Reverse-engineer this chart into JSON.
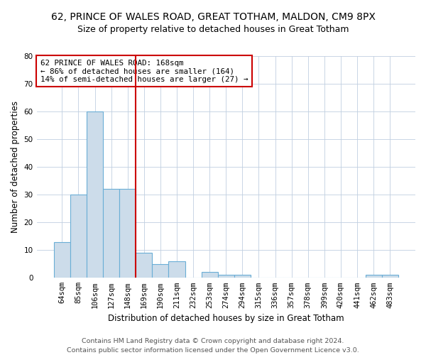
{
  "title": "62, PRINCE OF WALES ROAD, GREAT TOTHAM, MALDON, CM9 8PX",
  "subtitle": "Size of property relative to detached houses in Great Totham",
  "xlabel": "Distribution of detached houses by size in Great Totham",
  "ylabel": "Number of detached properties",
  "footnote1": "Contains HM Land Registry data © Crown copyright and database right 2024.",
  "footnote2": "Contains public sector information licensed under the Open Government Licence v3.0.",
  "bar_labels": [
    "64sqm",
    "85sqm",
    "106sqm",
    "127sqm",
    "148sqm",
    "169sqm",
    "190sqm",
    "211sqm",
    "232sqm",
    "253sqm",
    "274sqm",
    "294sqm",
    "315sqm",
    "336sqm",
    "357sqm",
    "378sqm",
    "399sqm",
    "420sqm",
    "441sqm",
    "462sqm",
    "483sqm"
  ],
  "bar_values": [
    13,
    30,
    60,
    32,
    32,
    9,
    5,
    6,
    0,
    2,
    1,
    1,
    0,
    0,
    0,
    0,
    0,
    0,
    0,
    1,
    1
  ],
  "bar_color": "#ccdcea",
  "bar_edge_color": "#6aaed6",
  "property_line_x": 4.5,
  "property_line_color": "#cc0000",
  "annotation_text": "62 PRINCE OF WALES ROAD: 168sqm\n← 86% of detached houses are smaller (164)\n14% of semi-detached houses are larger (27) →",
  "annotation_box_color": "#ffffff",
  "annotation_box_edge_color": "#cc0000",
  "ylim": [
    0,
    80
  ],
  "yticks": [
    0,
    10,
    20,
    30,
    40,
    50,
    60,
    70,
    80
  ],
  "grid_color": "#c0cfe0",
  "background_color": "#ffffff",
  "title_fontsize": 10,
  "subtitle_fontsize": 9,
  "axis_label_fontsize": 8.5,
  "tick_fontsize": 7.5,
  "footnote_fontsize": 6.8,
  "annotation_fontsize": 7.8
}
